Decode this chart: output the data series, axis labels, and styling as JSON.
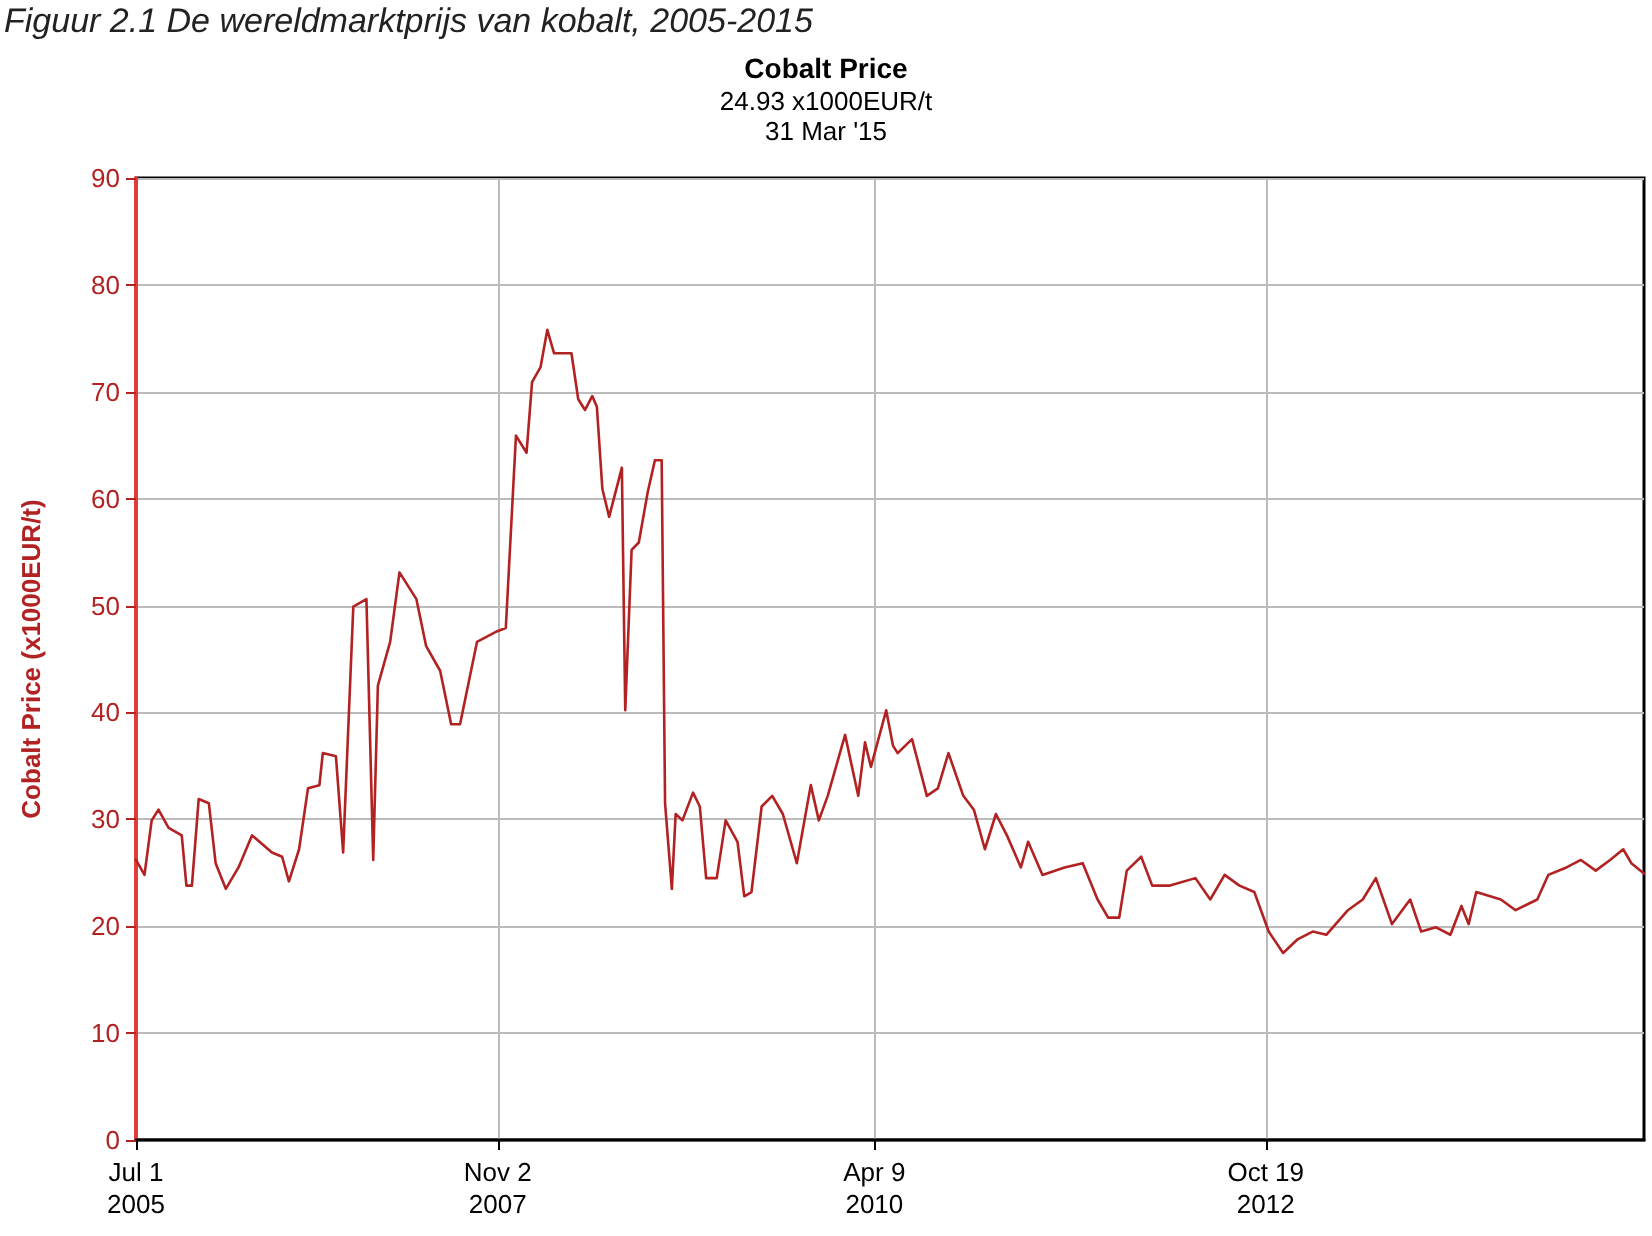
{
  "chart_data": {
    "type": "line",
    "title": "Cobalt Price",
    "subtitle": "24.93 x1000EUR/t\n31 Mar '15",
    "annotations": [
      "Figuur 2.1 De wereldmarktprijs van kobalt, 2005-2015"
    ],
    "ylabel": "Cobalt Price (x1000EUR/t)",
    "x": [
      "2005-07-01",
      "2005-07-21",
      "2005-08-07",
      "2005-08-23",
      "2005-09-16",
      "2005-10-17",
      "2005-10-28",
      "2005-11-10",
      "2005-11-26",
      "2005-12-20",
      "2006-01-05",
      "2006-01-29",
      "2006-02-28",
      "2006-04-01",
      "2006-05-18",
      "2006-06-11",
      "2006-06-27",
      "2006-07-21",
      "2006-08-11",
      "2006-09-07",
      "2006-09-15",
      "2006-10-16",
      "2006-11-02",
      "2006-11-26",
      "2006-12-27",
      "2007-01-12",
      "2007-01-23",
      "2007-02-21",
      "2007-03-15",
      "2007-04-24",
      "2007-05-17",
      "2007-06-19",
      "2007-07-15",
      "2007-08-05",
      "2007-09-14",
      "2007-11-01",
      "2007-11-21",
      "2007-12-15",
      "2008-01-09",
      "2008-01-22",
      "2008-02-11",
      "2008-02-27",
      "2008-03-14",
      "2008-04-24",
      "2008-05-10",
      "2008-05-26",
      "2008-06-12",
      "2008-06-23",
      "2008-07-06",
      "2008-07-22",
      "2008-08-21",
      "2008-08-29",
      "2008-09-13",
      "2008-09-30",
      "2008-10-21",
      "2008-11-07",
      "2008-11-23",
      "2008-12-01",
      "2008-12-17",
      "2008-12-26",
      "2009-01-11",
      "2009-02-05",
      "2009-02-21",
      "2009-03-08",
      "2009-04-02",
      "2009-04-23",
      "2009-05-21",
      "2009-06-06",
      "2009-06-23",
      "2009-07-17",
      "2009-08-11",
      "2009-09-05",
      "2009-10-08",
      "2009-11-10",
      "2009-11-29",
      "2009-12-20",
      "2010-01-30",
      "2010-03-02",
      "2010-03-18",
      "2010-04-01",
      "2010-05-07",
      "2010-05-23",
      "2010-06-03",
      "2010-07-07",
      "2010-08-11",
      "2010-09-06",
      "2010-10-01",
      "2010-11-05",
      "2010-11-30",
      "2010-12-26",
      "2011-01-21",
      "2011-02-16",
      "2011-03-21",
      "2011-04-07",
      "2011-05-11",
      "2011-07-02",
      "2011-08-14",
      "2011-09-18",
      "2011-10-13",
      "2011-11-08",
      "2011-11-26",
      "2011-12-30",
      "2012-01-25",
      "2012-03-07",
      "2012-05-06",
      "2012-06-10",
      "2012-07-14",
      "2012-08-18",
      "2012-09-22",
      "2012-10-26",
      "2012-11-29",
      "2013-01-03",
      "2013-02-07",
      "2013-03-11",
      "2013-05-01",
      "2013-06-05",
      "2013-07-06",
      "2013-08-13",
      "2013-09-25",
      "2013-10-21",
      "2013-11-25",
      "2013-12-29",
      "2014-01-24",
      "2014-02-10",
      "2014-02-28",
      "2014-04-27",
      "2014-06-01",
      "2014-07-22",
      "2014-08-17",
      "2014-09-29",
      "2014-11-02",
      "2014-12-07",
      "2015-01-10",
      "2015-02-10",
      "2015-03-01",
      "2015-03-31"
    ],
    "series": [
      {
        "color": "#b22222",
        "values": [
          26.2,
          24.8,
          29.9,
          30.9,
          29.2,
          28.5,
          23.8,
          23.8,
          31.9,
          31.5,
          25.9,
          23.5,
          25.5,
          28.5,
          26.9,
          26.5,
          24.2,
          27.2,
          32.9,
          33.2,
          36.2,
          35.9,
          26.9,
          49.9,
          50.6,
          26.2,
          42.5,
          46.6,
          53.1,
          50.6,
          46.2,
          43.9,
          38.9,
          38.9,
          46.6,
          47.6,
          47.9,
          65.9,
          64.3,
          70.9,
          72.3,
          75.8,
          73.6,
          73.6,
          69.3,
          68.3,
          69.6,
          68.6,
          60.9,
          58.3,
          62.9,
          40.2,
          55.2,
          55.9,
          60.6,
          63.6,
          63.6,
          31.5,
          23.5,
          30.5,
          29.9,
          32.5,
          31.2,
          24.5,
          24.5,
          29.9,
          27.9,
          22.8,
          23.2,
          31.2,
          32.2,
          30.5,
          25.9,
          33.2,
          29.9,
          32.2,
          37.9,
          32.2,
          37.2,
          34.9,
          40.2,
          36.9,
          36.2,
          37.5,
          32.2,
          32.9,
          36.2,
          32.2,
          30.9,
          27.2,
          30.5,
          28.5,
          25.5,
          27.9,
          24.8,
          25.5,
          25.9,
          22.5,
          20.8,
          20.8,
          25.2,
          26.5,
          23.8,
          23.8,
          24.5,
          22.5,
          24.8,
          23.8,
          23.2,
          19.5,
          17.5,
          18.8,
          19.5,
          19.2,
          21.5,
          22.5,
          24.5,
          20.2,
          22.5,
          19.5,
          19.9,
          19.2,
          21.9,
          20.2,
          23.2,
          22.5,
          21.5,
          22.5,
          24.8,
          25.5,
          26.2,
          25.2,
          26.2,
          27.2,
          25.9,
          24.93
        ]
      }
    ],
    "xlim": [
      "2005-07-01",
      "2015-03-31"
    ],
    "xticks": [
      {
        "value": "2005-07-01",
        "label": "Jul 1\n2005"
      },
      {
        "value": "2007-11-02",
        "label": "Nov 2\n2007"
      },
      {
        "value": "2010-04-09",
        "label": "Apr 9\n2010"
      },
      {
        "value": "2012-10-19",
        "label": "Oct 19\n2012"
      }
    ],
    "ylim": [
      0,
      90
    ],
    "yticks": [
      0,
      10,
      20,
      30,
      40,
      50,
      60,
      70,
      80,
      90
    ],
    "grid": true,
    "marker": "none",
    "line_style": "solid"
  }
}
